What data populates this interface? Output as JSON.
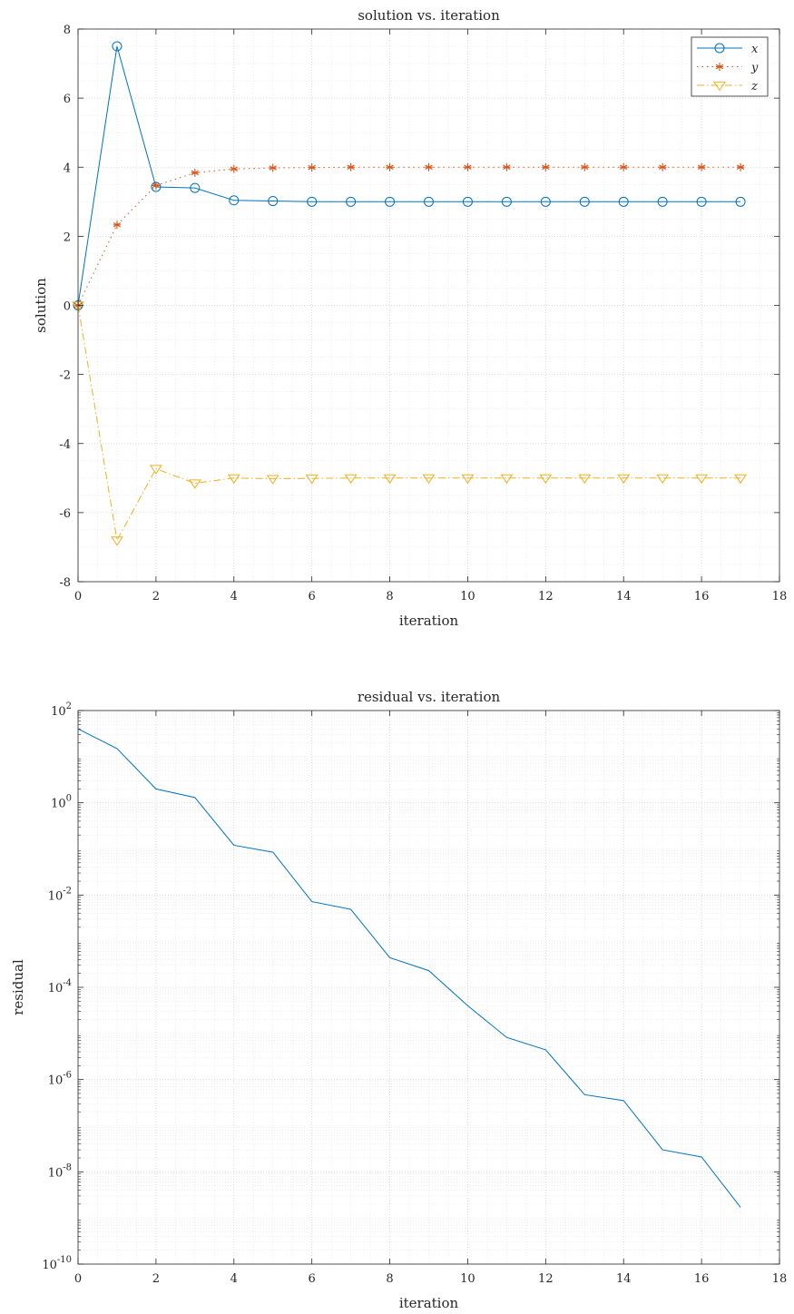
{
  "chart_data": [
    {
      "type": "line",
      "title": "solution vs. iteration",
      "xlabel": "iteration",
      "ylabel": "solution",
      "xlim": [
        0,
        18
      ],
      "ylim": [
        -8,
        8
      ],
      "xticks": [
        "0",
        "2",
        "4",
        "6",
        "8",
        "10",
        "12",
        "14",
        "16",
        "18"
      ],
      "yticks": [
        "8",
        "6",
        "4",
        "2",
        "0",
        "-2",
        "-4",
        "-6",
        "-8"
      ],
      "grid": true,
      "minor_grid": true,
      "legend_position": "top-right",
      "x": [
        0,
        1,
        2,
        3,
        4,
        5,
        6,
        7,
        8,
        9,
        10,
        11,
        12,
        13,
        14,
        15,
        16,
        17
      ],
      "series": [
        {
          "name": "x",
          "color": "#0072BD",
          "line": "solid",
          "marker": "circle",
          "values": [
            0,
            7.5,
            3.43,
            3.4,
            3.04,
            3.02,
            3.0,
            3.0,
            3.0,
            3.0,
            3.0,
            3.0,
            3.0,
            3.0,
            3.0,
            3.0,
            3.0,
            3.0
          ]
        },
        {
          "name": "y",
          "color": "#D95319",
          "line": "dotted",
          "marker": "asterisk",
          "values": [
            0,
            2.33,
            3.47,
            3.84,
            3.95,
            3.98,
            3.99,
            4.0,
            4.0,
            4.0,
            4.0,
            4.0,
            4.0,
            4.0,
            4.0,
            4.0,
            4.0,
            4.0
          ]
        },
        {
          "name": "z",
          "color": "#EDB120",
          "line": "dashdot",
          "marker": "triangle-down",
          "values": [
            0,
            -6.8,
            -4.73,
            -5.15,
            -5.0,
            -5.02,
            -5.01,
            -5.0,
            -5.0,
            -5.0,
            -5.0,
            -5.0,
            -5.0,
            -5.0,
            -5.0,
            -5.0,
            -5.0,
            -5.0
          ]
        }
      ]
    },
    {
      "type": "line",
      "title": "residual vs. iteration",
      "xlabel": "iteration",
      "ylabel": "residual",
      "yscale": "log",
      "xlim": [
        0,
        18
      ],
      "ylim": [
        1e-10,
        100
      ],
      "xticks": [
        "0",
        "2",
        "4",
        "6",
        "8",
        "10",
        "12",
        "14",
        "16",
        "18"
      ],
      "yticks": [
        {
          "base": "10",
          "exp": "2"
        },
        {
          "base": "10",
          "exp": "0"
        },
        {
          "base": "10",
          "exp": "-2"
        },
        {
          "base": "10",
          "exp": "-4"
        },
        {
          "base": "10",
          "exp": "-6"
        },
        {
          "base": "10",
          "exp": "-8"
        },
        {
          "base": "10",
          "exp": "-10"
        }
      ],
      "grid": true,
      "minor_grid": true,
      "x": [
        0,
        1,
        2,
        3,
        4,
        5,
        6,
        7,
        8,
        9,
        10,
        11,
        12,
        13,
        14,
        15,
        16,
        17
      ],
      "series": [
        {
          "color": "#0072BD",
          "line": "solid",
          "values": [
            40,
            15,
            2.0,
            1.3,
            0.12,
            0.085,
            0.0072,
            0.0049,
            0.00044,
            0.00023,
            4e-05,
            8.2e-06,
            4.4e-06,
            4.7e-07,
            3.5e-07,
            3e-08,
            2.1e-08,
            1.7e-09
          ]
        }
      ]
    }
  ]
}
